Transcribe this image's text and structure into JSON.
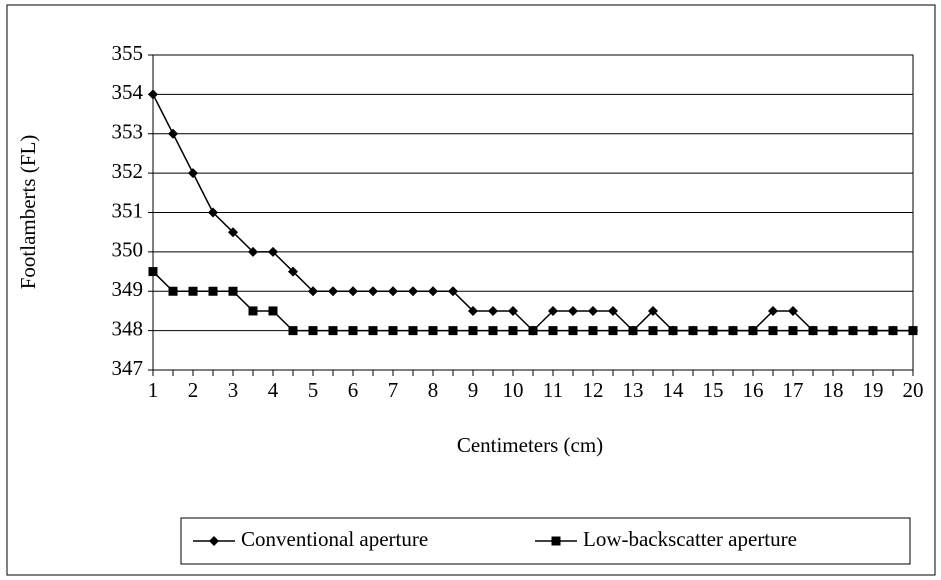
{
  "chart_data": {
    "type": "line",
    "x_label": "Centimeters (cm)",
    "y_label": "Footlamberts (FL)",
    "x": [
      1,
      1.5,
      2,
      2.5,
      3,
      3.5,
      4,
      4.5,
      5,
      5.5,
      6,
      6.5,
      7,
      7.5,
      8,
      8.5,
      9,
      9.5,
      10,
      10.5,
      11,
      11.5,
      12,
      12.5,
      13,
      13.5,
      14,
      14.5,
      15,
      15.5,
      16,
      16.5,
      17,
      17.5,
      18,
      18.5,
      19,
      19.5,
      20
    ],
    "series": [
      {
        "name": "Conventional aperture",
        "color": "#000000",
        "marker": "diamond",
        "values": [
          354,
          353,
          352,
          351,
          350.5,
          350,
          350,
          349.5,
          349,
          349,
          349,
          349,
          349,
          349,
          349,
          349,
          348.5,
          348.5,
          348.5,
          348,
          348.5,
          348.5,
          348.5,
          348.5,
          348,
          348.5,
          348,
          348,
          348,
          348,
          348,
          348.5,
          348.5,
          348,
          348,
          348,
          348,
          348,
          348
        ]
      },
      {
        "name": "Low-backscatter aperture",
        "color": "#000000",
        "marker": "square",
        "values": [
          349.5,
          349,
          349,
          349,
          349,
          348.5,
          348.5,
          348,
          348,
          348,
          348,
          348,
          348,
          348,
          348,
          348,
          348,
          348,
          348,
          348,
          348,
          348,
          348,
          348,
          348,
          348,
          348,
          348,
          348,
          348,
          348,
          348,
          348,
          348,
          348,
          348,
          348,
          348,
          348
        ]
      }
    ],
    "xlim": [
      1,
      20
    ],
    "xticks": [
      1,
      2,
      3,
      4,
      5,
      6,
      7,
      8,
      9,
      10,
      11,
      12,
      13,
      14,
      15,
      16,
      17,
      18,
      19,
      20
    ],
    "ylim": [
      347,
      355
    ],
    "yticks": [
      347,
      348,
      349,
      350,
      351,
      352,
      353,
      354,
      355
    ],
    "grid": true,
    "legend": "bottom"
  }
}
